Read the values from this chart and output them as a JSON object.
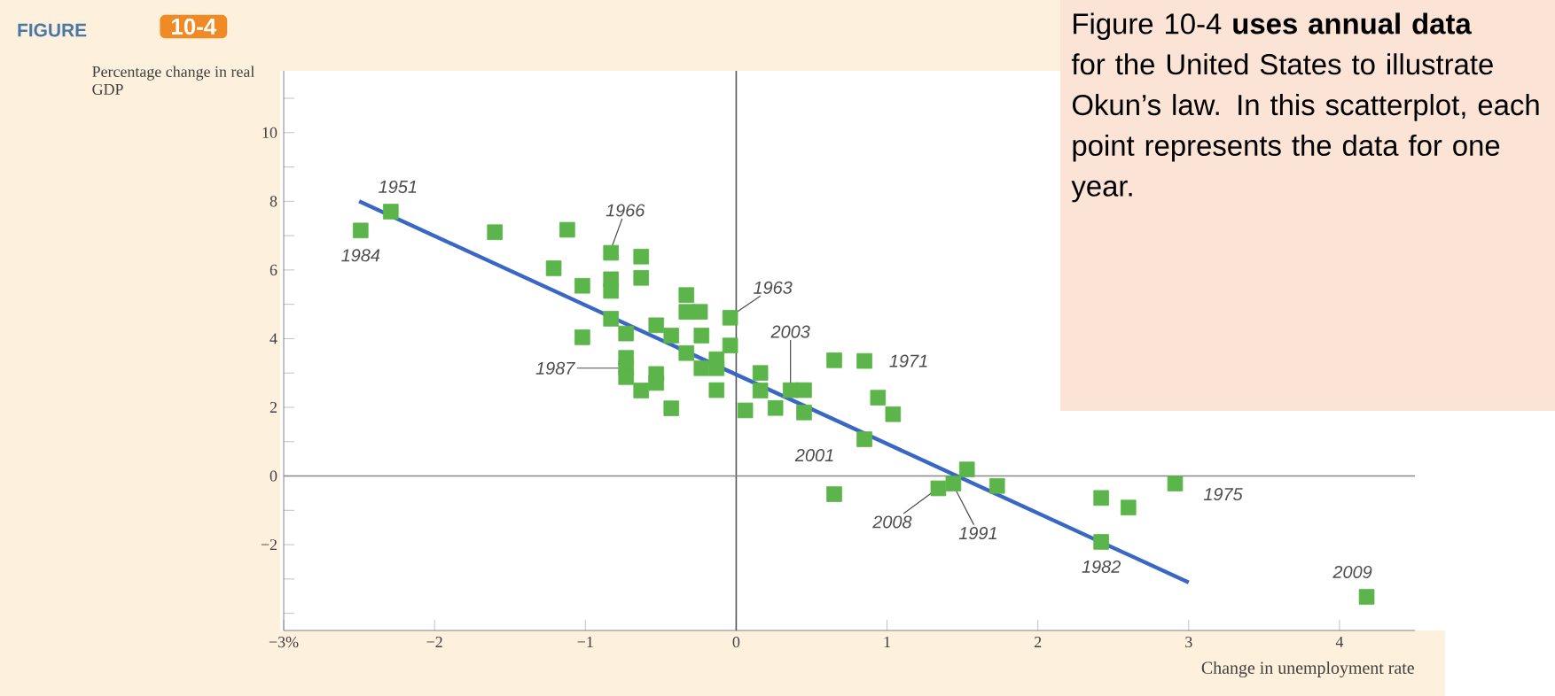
{
  "chart_data": {
    "type": "scatter",
    "title": "FIGURE",
    "subtitle": "10-4",
    "xlabel": "Change in unemployment rate",
    "ylabel": "Percentage change in real GDP",
    "xlim": [
      -3,
      4.5
    ],
    "ylim": [
      -4.5,
      11.8
    ],
    "xticks": [
      {
        "value": -3,
        "label": "−3%"
      },
      {
        "value": -2,
        "label": "−2"
      },
      {
        "value": -1,
        "label": "−1"
      },
      0,
      1,
      2,
      3,
      4
    ],
    "yticks": [
      {
        "value": -4,
        "label": null
      },
      {
        "value": -3,
        "label": null
      },
      {
        "value": -2,
        "label": "−2"
      },
      {
        "value": -1,
        "label": null
      },
      0,
      {
        "value": 1,
        "label": null
      },
      2,
      {
        "value": 3,
        "label": null
      },
      4,
      {
        "value": 5,
        "label": null
      },
      6,
      {
        "value": 7,
        "label": null
      },
      8,
      {
        "value": 9,
        "label": null
      },
      10,
      {
        "value": 11,
        "label": null
      }
    ],
    "ref_lines": [
      {
        "axis": "x",
        "value": 0,
        "color": "#555555"
      },
      {
        "axis": "y",
        "value": 0,
        "color": "#888888"
      }
    ],
    "series": [
      {
        "color": "#5cb54a",
        "marker": "square",
        "x": [
          -2.49,
          -2.29,
          -1.6,
          -1.12,
          -1.21,
          -1.02,
          -0.83,
          -0.83,
          -0.83,
          -0.63,
          -0.63,
          -0.83,
          -1.02,
          -0.73,
          -0.73,
          -0.73,
          -0.73,
          -0.63,
          -0.53,
          -0.53,
          -0.53,
          -0.43,
          -0.43,
          -0.33,
          -0.33,
          -0.24,
          -0.33,
          -0.23,
          -0.23,
          -0.13,
          -0.13,
          -0.13,
          -0.04,
          -0.04,
          0.06,
          0.16,
          0.16,
          0.26,
          0.36,
          0.45,
          0.45,
          0.65,
          0.85,
          0.94,
          1.04,
          0.85,
          0.65,
          1.34,
          1.44,
          1.53,
          1.73,
          2.42,
          2.6,
          2.42,
          2.91,
          4.18
        ],
        "values": [
          7.15,
          7.7,
          7.1,
          7.17,
          6.05,
          5.54,
          6.5,
          5.73,
          5.39,
          6.39,
          5.77,
          4.58,
          4.04,
          4.15,
          3.44,
          3.14,
          2.88,
          2.49,
          4.39,
          2.97,
          2.71,
          4.09,
          1.97,
          5.27,
          4.78,
          4.78,
          3.58,
          4.09,
          3.14,
          3.4,
          3.14,
          2.5,
          4.61,
          3.8,
          1.91,
          3.0,
          2.49,
          1.98,
          2.5,
          2.5,
          1.85,
          3.37,
          3.35,
          2.28,
          1.8,
          1.07,
          -0.53,
          -0.36,
          -0.22,
          0.19,
          -0.29,
          -0.64,
          -0.92,
          -1.92,
          -0.22,
          -3.52
        ]
      },
      {
        "type": "line",
        "color": "#3a66c4",
        "x": [
          -2.5,
          3.0
        ],
        "values": [
          8.0,
          -3.1
        ]
      }
    ],
    "annotations": [
      "Figure 10-4 **uses annual data** for the United States to illustrate Okun’s law. In this scatterplot, each point represents the data for one year.",
      {
        "text": "1951",
        "x": -2.29,
        "y": 7.7
      },
      {
        "text": "1984",
        "x": -2.49,
        "y": 7.15
      },
      {
        "text": "1966",
        "x": -0.83,
        "y": 6.5
      },
      {
        "text": "1987",
        "x": -0.73,
        "y": 3.14
      },
      {
        "text": "1963",
        "x": -0.04,
        "y": 4.61
      },
      {
        "text": "2003",
        "x": 0.36,
        "y": 2.5
      },
      {
        "text": "1971",
        "x": 0.85,
        "y": 3.35
      },
      {
        "text": "2001",
        "x": 0.85,
        "y": 1.07
      },
      {
        "text": "2008",
        "x": 1.34,
        "y": -0.36
      },
      {
        "text": "1991",
        "x": 1.44,
        "y": -0.22
      },
      {
        "text": "1975",
        "x": 2.91,
        "y": -0.22
      },
      {
        "text": "1982",
        "x": 2.42,
        "y": -1.92
      },
      {
        "text": "2009",
        "x": 4.18,
        "y": -3.52
      }
    ]
  }
}
